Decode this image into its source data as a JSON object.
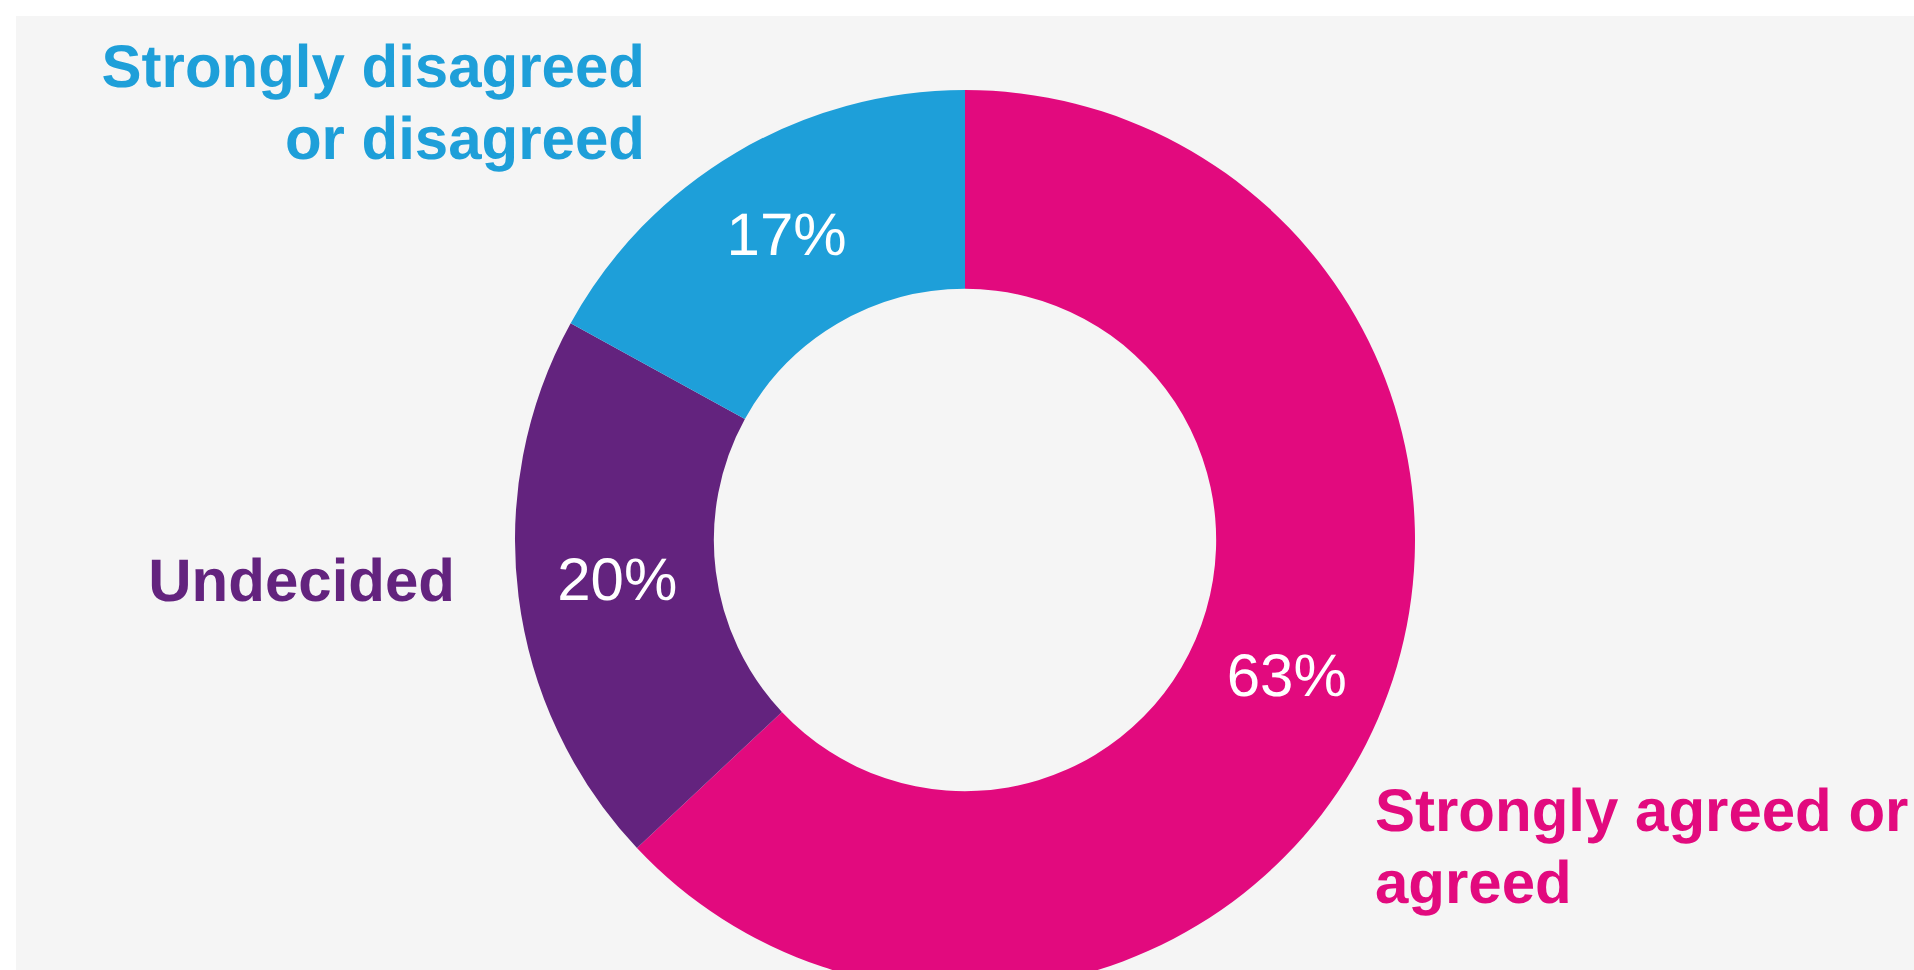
{
  "chart_data": {
    "type": "donut",
    "categories": [
      "Strongly agreed or agreed",
      "Undecided",
      "Strongly disagreed or disagreed"
    ],
    "values": [
      63,
      20,
      17
    ],
    "colors": [
      "#e20a7e",
      "#63237e",
      "#1e9fd9"
    ],
    "value_labels": [
      "63%",
      "20%",
      "17%"
    ],
    "legend": false
  }
}
